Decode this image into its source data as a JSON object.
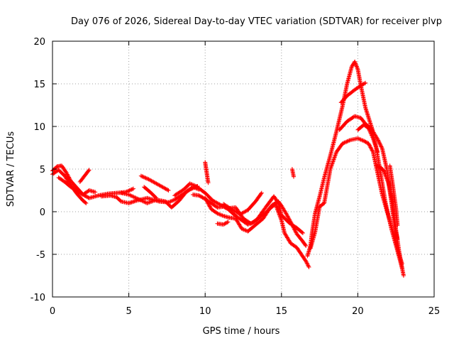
{
  "chart_data": {
    "type": "scatter",
    "title": "Day 076 of 2026, Sidereal Day-to-day VTEC variation (SDTVAR) for receiver plvp",
    "xlabel": "GPS time / hours",
    "ylabel": "SDTVAR / TECUs",
    "xlim": [
      0,
      25
    ],
    "ylim": [
      -10,
      20
    ],
    "xticks": [
      0,
      5,
      10,
      15,
      20,
      25
    ],
    "yticks": [
      -10,
      -5,
      0,
      5,
      10,
      15,
      20
    ],
    "grid": true,
    "marker": "+",
    "color": "#ff0000",
    "series": [
      {
        "name": "trace-a",
        "points": [
          [
            0.0,
            4.8
          ],
          [
            0.3,
            5.3
          ],
          [
            0.6,
            5.4
          ],
          [
            0.9,
            4.6
          ],
          [
            1.2,
            3.6
          ],
          [
            1.6,
            2.8
          ],
          [
            2.0,
            2.0
          ],
          [
            2.4,
            1.6
          ],
          [
            3.0,
            1.9
          ],
          [
            3.6,
            2.1
          ],
          [
            4.2,
            2.2
          ],
          [
            4.8,
            2.3
          ],
          [
            5.3,
            2.7
          ]
        ]
      },
      {
        "name": "trace-b",
        "points": [
          [
            0.0,
            4.4
          ],
          [
            0.4,
            4.9
          ],
          [
            0.8,
            4.2
          ],
          [
            1.2,
            3.1
          ],
          [
            1.6,
            2.1
          ],
          [
            2.0,
            1.3
          ],
          [
            2.2,
            1.0
          ]
        ]
      },
      {
        "name": "trace-c",
        "points": [
          [
            0.4,
            4.0
          ],
          [
            0.8,
            3.5
          ],
          [
            1.2,
            2.9
          ],
          [
            1.6,
            2.4
          ],
          [
            2.0,
            2.0
          ],
          [
            2.4,
            2.5
          ],
          [
            2.8,
            2.3
          ]
        ]
      },
      {
        "name": "trace-d",
        "points": [
          [
            1.8,
            3.5
          ],
          [
            2.1,
            4.2
          ],
          [
            2.4,
            4.9
          ]
        ]
      },
      {
        "name": "trace-e",
        "points": [
          [
            3.2,
            1.8
          ],
          [
            3.8,
            1.9
          ],
          [
            4.2,
            1.7
          ],
          [
            4.5,
            1.2
          ],
          [
            5.0,
            1.0
          ],
          [
            5.5,
            1.3
          ],
          [
            6.2,
            1.6
          ],
          [
            7.0,
            1.2
          ],
          [
            7.6,
            1.1
          ],
          [
            8.0,
            1.4
          ],
          [
            8.5,
            2.0
          ],
          [
            9.0,
            2.6
          ],
          [
            9.5,
            3.0
          ]
        ]
      },
      {
        "name": "trace-f",
        "points": [
          [
            4.5,
            2.2
          ],
          [
            5.0,
            2.0
          ],
          [
            5.6,
            1.5
          ],
          [
            6.2,
            1.0
          ],
          [
            6.8,
            1.4
          ],
          [
            7.4,
            1.2
          ],
          [
            7.8,
            0.5
          ],
          [
            8.3,
            1.3
          ],
          [
            8.8,
            2.4
          ],
          [
            9.2,
            2.9
          ],
          [
            9.6,
            2.6
          ]
        ]
      },
      {
        "name": "trace-g",
        "points": [
          [
            5.8,
            4.2
          ],
          [
            6.3,
            3.8
          ],
          [
            6.8,
            3.3
          ],
          [
            7.3,
            2.8
          ],
          [
            7.6,
            2.5
          ]
        ]
      },
      {
        "name": "trace-h",
        "points": [
          [
            6.0,
            2.9
          ],
          [
            6.4,
            2.3
          ],
          [
            6.8,
            1.6
          ]
        ]
      },
      {
        "name": "trace-i",
        "points": [
          [
            8.0,
            1.9
          ],
          [
            8.6,
            2.6
          ],
          [
            9.0,
            3.3
          ],
          [
            9.4,
            3.0
          ],
          [
            10.0,
            2.2
          ],
          [
            10.5,
            1.3
          ],
          [
            11.0,
            0.8
          ],
          [
            11.5,
            0.4
          ],
          [
            12.0,
            0.5
          ],
          [
            12.5,
            -0.8
          ],
          [
            13.0,
            -1.4
          ],
          [
            13.4,
            -0.9
          ],
          [
            14.0,
            0.6
          ],
          [
            14.5,
            1.8
          ],
          [
            14.8,
            1.0
          ],
          [
            15.0,
            -0.4
          ],
          [
            15.5,
            -1.3
          ],
          [
            16.0,
            -1.9
          ],
          [
            16.4,
            -2.5
          ]
        ]
      },
      {
        "name": "trace-j",
        "points": [
          [
            9.2,
            2.0
          ],
          [
            9.6,
            1.9
          ],
          [
            10.0,
            1.5
          ],
          [
            10.4,
            1.0
          ],
          [
            10.8,
            0.5
          ],
          [
            11.2,
            0.6
          ],
          [
            11.5,
            0.3
          ],
          [
            12.0,
            -0.5
          ],
          [
            12.4,
            -1.0
          ],
          [
            12.8,
            -1.5
          ],
          [
            13.2,
            -1.2
          ],
          [
            13.6,
            -0.6
          ],
          [
            14.0,
            -0.1
          ],
          [
            14.4,
            0.8
          ],
          [
            14.8,
            1.2
          ],
          [
            15.0,
            0.7
          ],
          [
            15.3,
            -0.2
          ],
          [
            15.6,
            -1.2
          ],
          [
            16.0,
            -2.6
          ],
          [
            16.4,
            -3.5
          ],
          [
            16.6,
            -4.0
          ]
        ]
      },
      {
        "name": "trace-k",
        "points": [
          [
            10.0,
            1.6
          ],
          [
            10.4,
            0.3
          ],
          [
            10.8,
            -0.2
          ],
          [
            11.2,
            -0.5
          ],
          [
            11.6,
            -0.7
          ],
          [
            12.0,
            -0.8
          ],
          [
            12.4,
            -2.0
          ],
          [
            12.8,
            -2.3
          ],
          [
            13.2,
            -1.7
          ],
          [
            13.8,
            -0.8
          ],
          [
            14.2,
            0.3
          ],
          [
            14.6,
            0.9
          ],
          [
            15.0,
            -1.0
          ],
          [
            15.2,
            -2.5
          ],
          [
            15.6,
            -3.7
          ],
          [
            16.0,
            -4.2
          ],
          [
            16.3,
            -5.0
          ],
          [
            16.6,
            -5.8
          ],
          [
            16.8,
            -6.5
          ]
        ]
      },
      {
        "name": "trace-l",
        "points": [
          [
            11.2,
            0.9
          ],
          [
            11.8,
            0.2
          ],
          [
            12.3,
            -0.3
          ],
          [
            12.8,
            0.2
          ],
          [
            13.3,
            1.2
          ],
          [
            13.7,
            2.2
          ]
        ]
      },
      {
        "name": "trace-m",
        "points": [
          [
            10.0,
            5.8
          ],
          [
            10.1,
            4.6
          ],
          [
            10.2,
            3.4
          ]
        ]
      },
      {
        "name": "trace-n",
        "points": [
          [
            10.8,
            -1.4
          ],
          [
            11.2,
            -1.5
          ],
          [
            11.5,
            -1.2
          ]
        ]
      },
      {
        "name": "trace-o",
        "points": [
          [
            15.7,
            5.0
          ],
          [
            15.8,
            4.1
          ]
        ]
      },
      {
        "name": "trace-p",
        "points": [
          [
            16.7,
            -5.2
          ],
          [
            16.9,
            -4.0
          ],
          [
            17.0,
            -2.5
          ],
          [
            17.2,
            -0.2
          ],
          [
            17.5,
            1.8
          ],
          [
            17.8,
            4.0
          ],
          [
            18.2,
            6.6
          ],
          [
            18.6,
            9.4
          ],
          [
            19.0,
            12.4
          ],
          [
            19.3,
            15.0
          ],
          [
            19.6,
            17.0
          ],
          [
            19.8,
            17.6
          ],
          [
            20.0,
            16.7
          ],
          [
            20.2,
            14.8
          ],
          [
            20.5,
            12.2
          ],
          [
            20.8,
            10.5
          ],
          [
            21.0,
            9.4
          ],
          [
            21.3,
            8.5
          ],
          [
            21.6,
            7.4
          ],
          [
            21.9,
            5.0
          ],
          [
            22.2,
            1.6
          ],
          [
            22.5,
            -2.1
          ],
          [
            22.7,
            -4.6
          ],
          [
            22.9,
            -6.6
          ],
          [
            23.0,
            -7.5
          ]
        ]
      },
      {
        "name": "trace-q",
        "points": [
          [
            16.9,
            -4.3
          ],
          [
            17.2,
            -2.4
          ],
          [
            17.5,
            0.6
          ],
          [
            17.8,
            1.0
          ],
          [
            18.2,
            5.0
          ],
          [
            18.6,
            7.0
          ],
          [
            19.0,
            8.0
          ],
          [
            19.5,
            8.4
          ],
          [
            20.0,
            8.6
          ],
          [
            20.4,
            8.3
          ],
          [
            20.7,
            8.0
          ],
          [
            21.0,
            7.0
          ],
          [
            21.3,
            4.5
          ],
          [
            21.6,
            2.0
          ],
          [
            22.0,
            -0.5
          ],
          [
            22.4,
            -3.0
          ],
          [
            22.7,
            -5.0
          ],
          [
            22.9,
            -6.1
          ]
        ]
      },
      {
        "name": "trace-r",
        "points": [
          [
            18.8,
            9.6
          ],
          [
            19.3,
            10.6
          ],
          [
            19.8,
            11.2
          ],
          [
            20.2,
            11.0
          ],
          [
            20.5,
            10.3
          ],
          [
            20.9,
            9.7
          ],
          [
            21.2,
            7.6
          ],
          [
            21.5,
            4.4
          ],
          [
            21.8,
            1.2
          ],
          [
            22.2,
            -2.0
          ],
          [
            22.6,
            -4.6
          ],
          [
            22.9,
            -6.6
          ]
        ]
      },
      {
        "name": "trace-s",
        "points": [
          [
            18.9,
            12.8
          ],
          [
            19.3,
            13.6
          ],
          [
            19.8,
            14.3
          ],
          [
            20.2,
            14.8
          ],
          [
            20.5,
            15.1
          ]
        ]
      },
      {
        "name": "trace-t",
        "points": [
          [
            20.0,
            9.6
          ],
          [
            20.4,
            10.2
          ],
          [
            20.7,
            9.8
          ],
          [
            21.0,
            8.6
          ],
          [
            21.3,
            7.0
          ]
        ]
      },
      {
        "name": "trace-u",
        "points": [
          [
            21.2,
            5.4
          ],
          [
            21.5,
            5.2
          ],
          [
            21.7,
            4.8
          ],
          [
            22.0,
            3.4
          ],
          [
            22.3,
            1.1
          ]
        ]
      },
      {
        "name": "trace-v",
        "points": [
          [
            22.0,
            3.5
          ],
          [
            22.2,
            1.2
          ],
          [
            22.4,
            -1.6
          ],
          [
            22.6,
            -3.2
          ]
        ]
      },
      {
        "name": "trace-w",
        "points": [
          [
            22.1,
            5.4
          ],
          [
            22.3,
            3.0
          ],
          [
            22.5,
            0.4
          ],
          [
            22.6,
            -1.6
          ]
        ]
      }
    ]
  }
}
